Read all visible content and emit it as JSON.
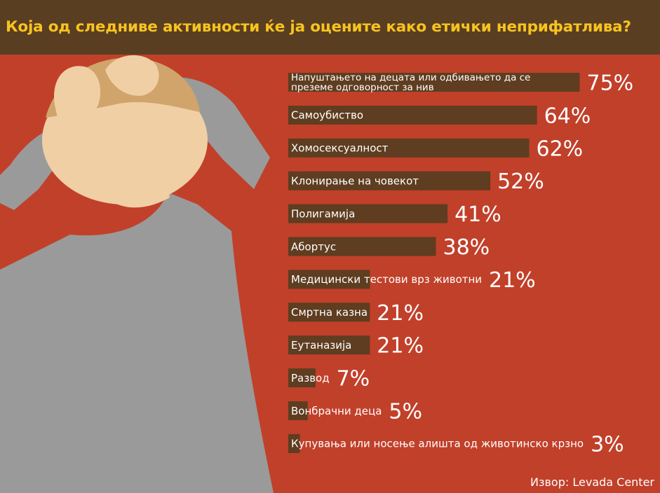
{
  "header": {
    "title": "Која од следниве активности ќе ја оцените како етички неприфатлива?"
  },
  "colors": {
    "background": "#c1402a",
    "header": "#5a3e22",
    "title": "#f7c41f",
    "bar": "#5e3d20",
    "text": "#ffffff",
    "skin": "#f0cfa5",
    "hair": "#d0a46b",
    "shirt": "#9a9a9a"
  },
  "chart_data": {
    "type": "bar",
    "orientation": "horizontal",
    "value_suffix": "%",
    "xlim": [
      0,
      100
    ],
    "categories": [
      "Напуштањето на децата или одбивањето да се преземе одговорност за нив",
      "Самоубиство",
      "Хомосексуалност",
      "Клонирање на човекот",
      "Полигамија",
      "Абортус",
      "Медицински тестови врз животни",
      "Смртна казна",
      "Еутаназија",
      "Развод",
      "Вонбрачни деца",
      "Купувања или носење алишта од животинско крзно"
    ],
    "values": [
      75,
      64,
      62,
      52,
      41,
      38,
      21,
      21,
      21,
      7,
      5,
      3
    ],
    "value_labels": [
      "75%",
      "64%",
      "62%",
      "52%",
      "41%",
      "38%",
      "21%",
      "21%",
      "21%",
      "7%",
      "5%",
      "3%"
    ]
  },
  "footer": {
    "source": "Извор: Levada Center"
  }
}
